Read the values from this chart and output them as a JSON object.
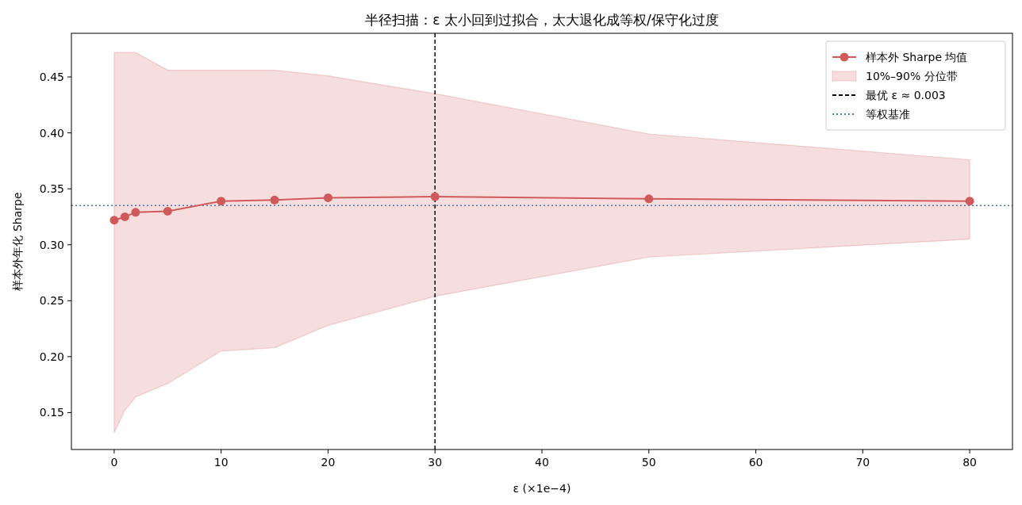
{
  "chart_data": {
    "type": "line",
    "title": "半径扫描：ε 太小回到过拟合，太大退化成等权/保守化过度",
    "xlabel": "ε (×1e−4)",
    "ylabel": "样本外年化 Sharpe",
    "x": [
      0,
      1,
      2,
      5,
      10,
      15,
      20,
      30,
      50,
      80
    ],
    "series": [
      {
        "name": "样本外 Sharpe 均值",
        "color": "#d05a5a",
        "marker": "circle",
        "values": [
          0.322,
          0.325,
          0.329,
          0.33,
          0.339,
          0.34,
          0.342,
          0.343,
          0.341,
          0.339
        ],
        "upper": [
          0.472,
          0.472,
          0.472,
          0.456,
          0.456,
          0.456,
          0.451,
          0.435,
          0.399,
          0.376
        ],
        "lower": [
          0.132,
          0.152,
          0.164,
          0.176,
          0.205,
          0.208,
          0.228,
          0.254,
          0.289,
          0.305
        ]
      }
    ],
    "annotations": [
      "10%–90% 分位带"
    ],
    "xlim": [
      -4,
      84
    ],
    "xticks": [
      0,
      10,
      20,
      30,
      40,
      50,
      60,
      70,
      80
    ],
    "ylim": [
      0.117,
      0.489
    ],
    "yticks": [
      0.15,
      {
        "value": 0.2,
        "label": "0.20"
      },
      0.25,
      {
        "value": 0.3,
        "label": "0.30"
      },
      0.35,
      {
        "value": 0.4,
        "label": "0.40"
      },
      0.45
    ],
    "ref_lines": [
      {
        "axis": "x",
        "value": 30,
        "label": "最优 ε ≈ 0.003",
        "color": "#000000",
        "line_style": "dashed"
      },
      {
        "axis": "y",
        "value": 0.335,
        "label": "等权基准",
        "color": "#4c72b0",
        "line_style": "dotted"
      }
    ],
    "legend": "top right",
    "grid": false
  }
}
